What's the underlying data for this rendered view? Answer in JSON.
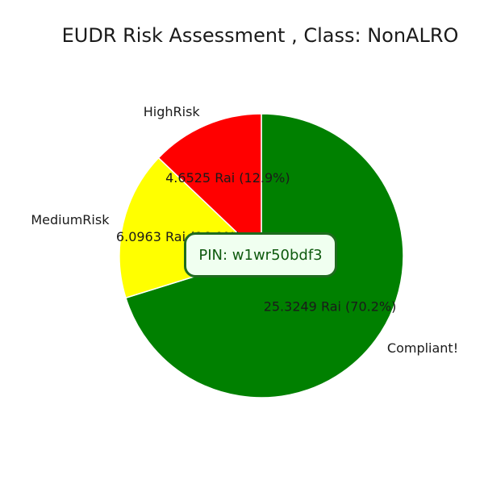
{
  "chart_data": {
    "type": "pie",
    "title": "EUDR Risk Assessment , Class: NonALRO",
    "slices": [
      {
        "label": "Compliant!",
        "value": 25.3249,
        "percent": 70.2,
        "value_label": "25.3249 Rai (70.2%)",
        "color": "#008000"
      },
      {
        "label": "MediumRisk",
        "value": 6.0963,
        "percent": 16.9,
        "value_label": "6.0963 Rai (16.9%)",
        "color": "#ffff00"
      },
      {
        "label": "HighRisk",
        "value": 4.6525,
        "percent": 12.9,
        "value_label": "4.6525 Rai (12.9%)",
        "color": "#ff0000"
      }
    ],
    "start_angle": "top, clockwise"
  },
  "annotation": {
    "pin_text": "PIN: w1wr50bdf3"
  }
}
